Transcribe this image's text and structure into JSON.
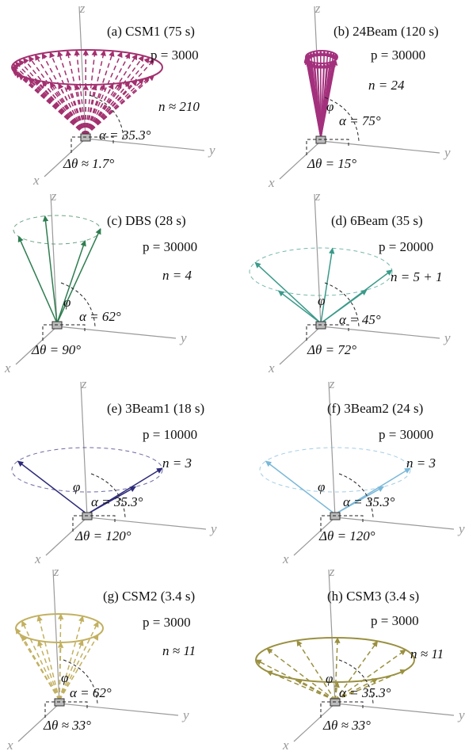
{
  "axis_labels": {
    "x": "x",
    "y": "y",
    "z": "z"
  },
  "panels": [
    {
      "title": "(a) CSM1 (75 s)",
      "p": "p = 3000",
      "n": "n ≈ 210",
      "alpha": "α = 35.3°",
      "dtheta": "Δθ ≈ 1.7°",
      "color": "#a3306f"
    },
    {
      "title": "(b) 24Beam (120 s)",
      "p": "p = 30000",
      "n": "n = 24",
      "phi": "φ",
      "alpha": "α = 75°",
      "dtheta": "Δθ = 15°",
      "color": "#a3307c"
    },
    {
      "title": "(c) DBS (28 s)",
      "p": "p = 30000",
      "n": "n = 4",
      "phi": "φ",
      "alpha": "α = 62°",
      "dtheta": "Δθ = 90°",
      "color": "#2e7d50"
    },
    {
      "title": "(d) 6Beam (35 s)",
      "p": "p = 20000",
      "n": "n = 5 + 1",
      "phi": "φ",
      "alpha": "α = 45°",
      "dtheta": "Δθ = 72°",
      "color": "#3a9a8a"
    },
    {
      "title": "(e) 3Beam1 (18 s)",
      "p": "p = 10000",
      "n": "n = 3",
      "phi": "φ",
      "alpha": "α = 35.3°",
      "dtheta": "Δθ = 120°",
      "color": "#2d2a7a"
    },
    {
      "title": "(f) 3Beam2 (24 s)",
      "p": "p = 30000",
      "n": "n = 3",
      "phi": "φ",
      "alpha": "α = 35.3°",
      "dtheta": "Δθ = 120°",
      "color": "#7ab8d8"
    },
    {
      "title": "(g) CSM2 (3.4 s)",
      "p": "p = 3000",
      "n": "n ≈ 11",
      "phi": "φ",
      "alpha": "α = 62°",
      "dtheta": "Δθ ≈ 33°",
      "color": "#c2b060"
    },
    {
      "title": "(h) CSM3 (3.4 s)",
      "p": "p = 3000",
      "n": "n ≈ 11",
      "phi": "φ",
      "alpha": "α = 35.3°",
      "dtheta": "Δθ ≈ 33°",
      "color": "#9a9040"
    }
  ]
}
